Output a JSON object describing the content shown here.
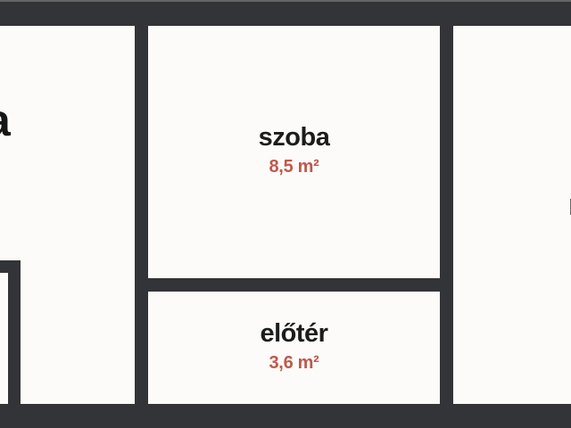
{
  "plan": {
    "type": "floor-plan",
    "rooms": [
      {
        "id": "left-room",
        "label": "",
        "label_partial": "a",
        "area": ""
      },
      {
        "id": "szoba",
        "label": "szoba",
        "area": "8,5 m²"
      },
      {
        "id": "eloter",
        "label": "előtér",
        "area": "3,6 m²"
      },
      {
        "id": "right-room",
        "label": "",
        "label_partial": "n",
        "area": ""
      }
    ],
    "colors": {
      "wall": "#333437",
      "background": "#fcfbf9",
      "room_label": "#1c1c1c",
      "area_accent": "#c0584a"
    }
  }
}
